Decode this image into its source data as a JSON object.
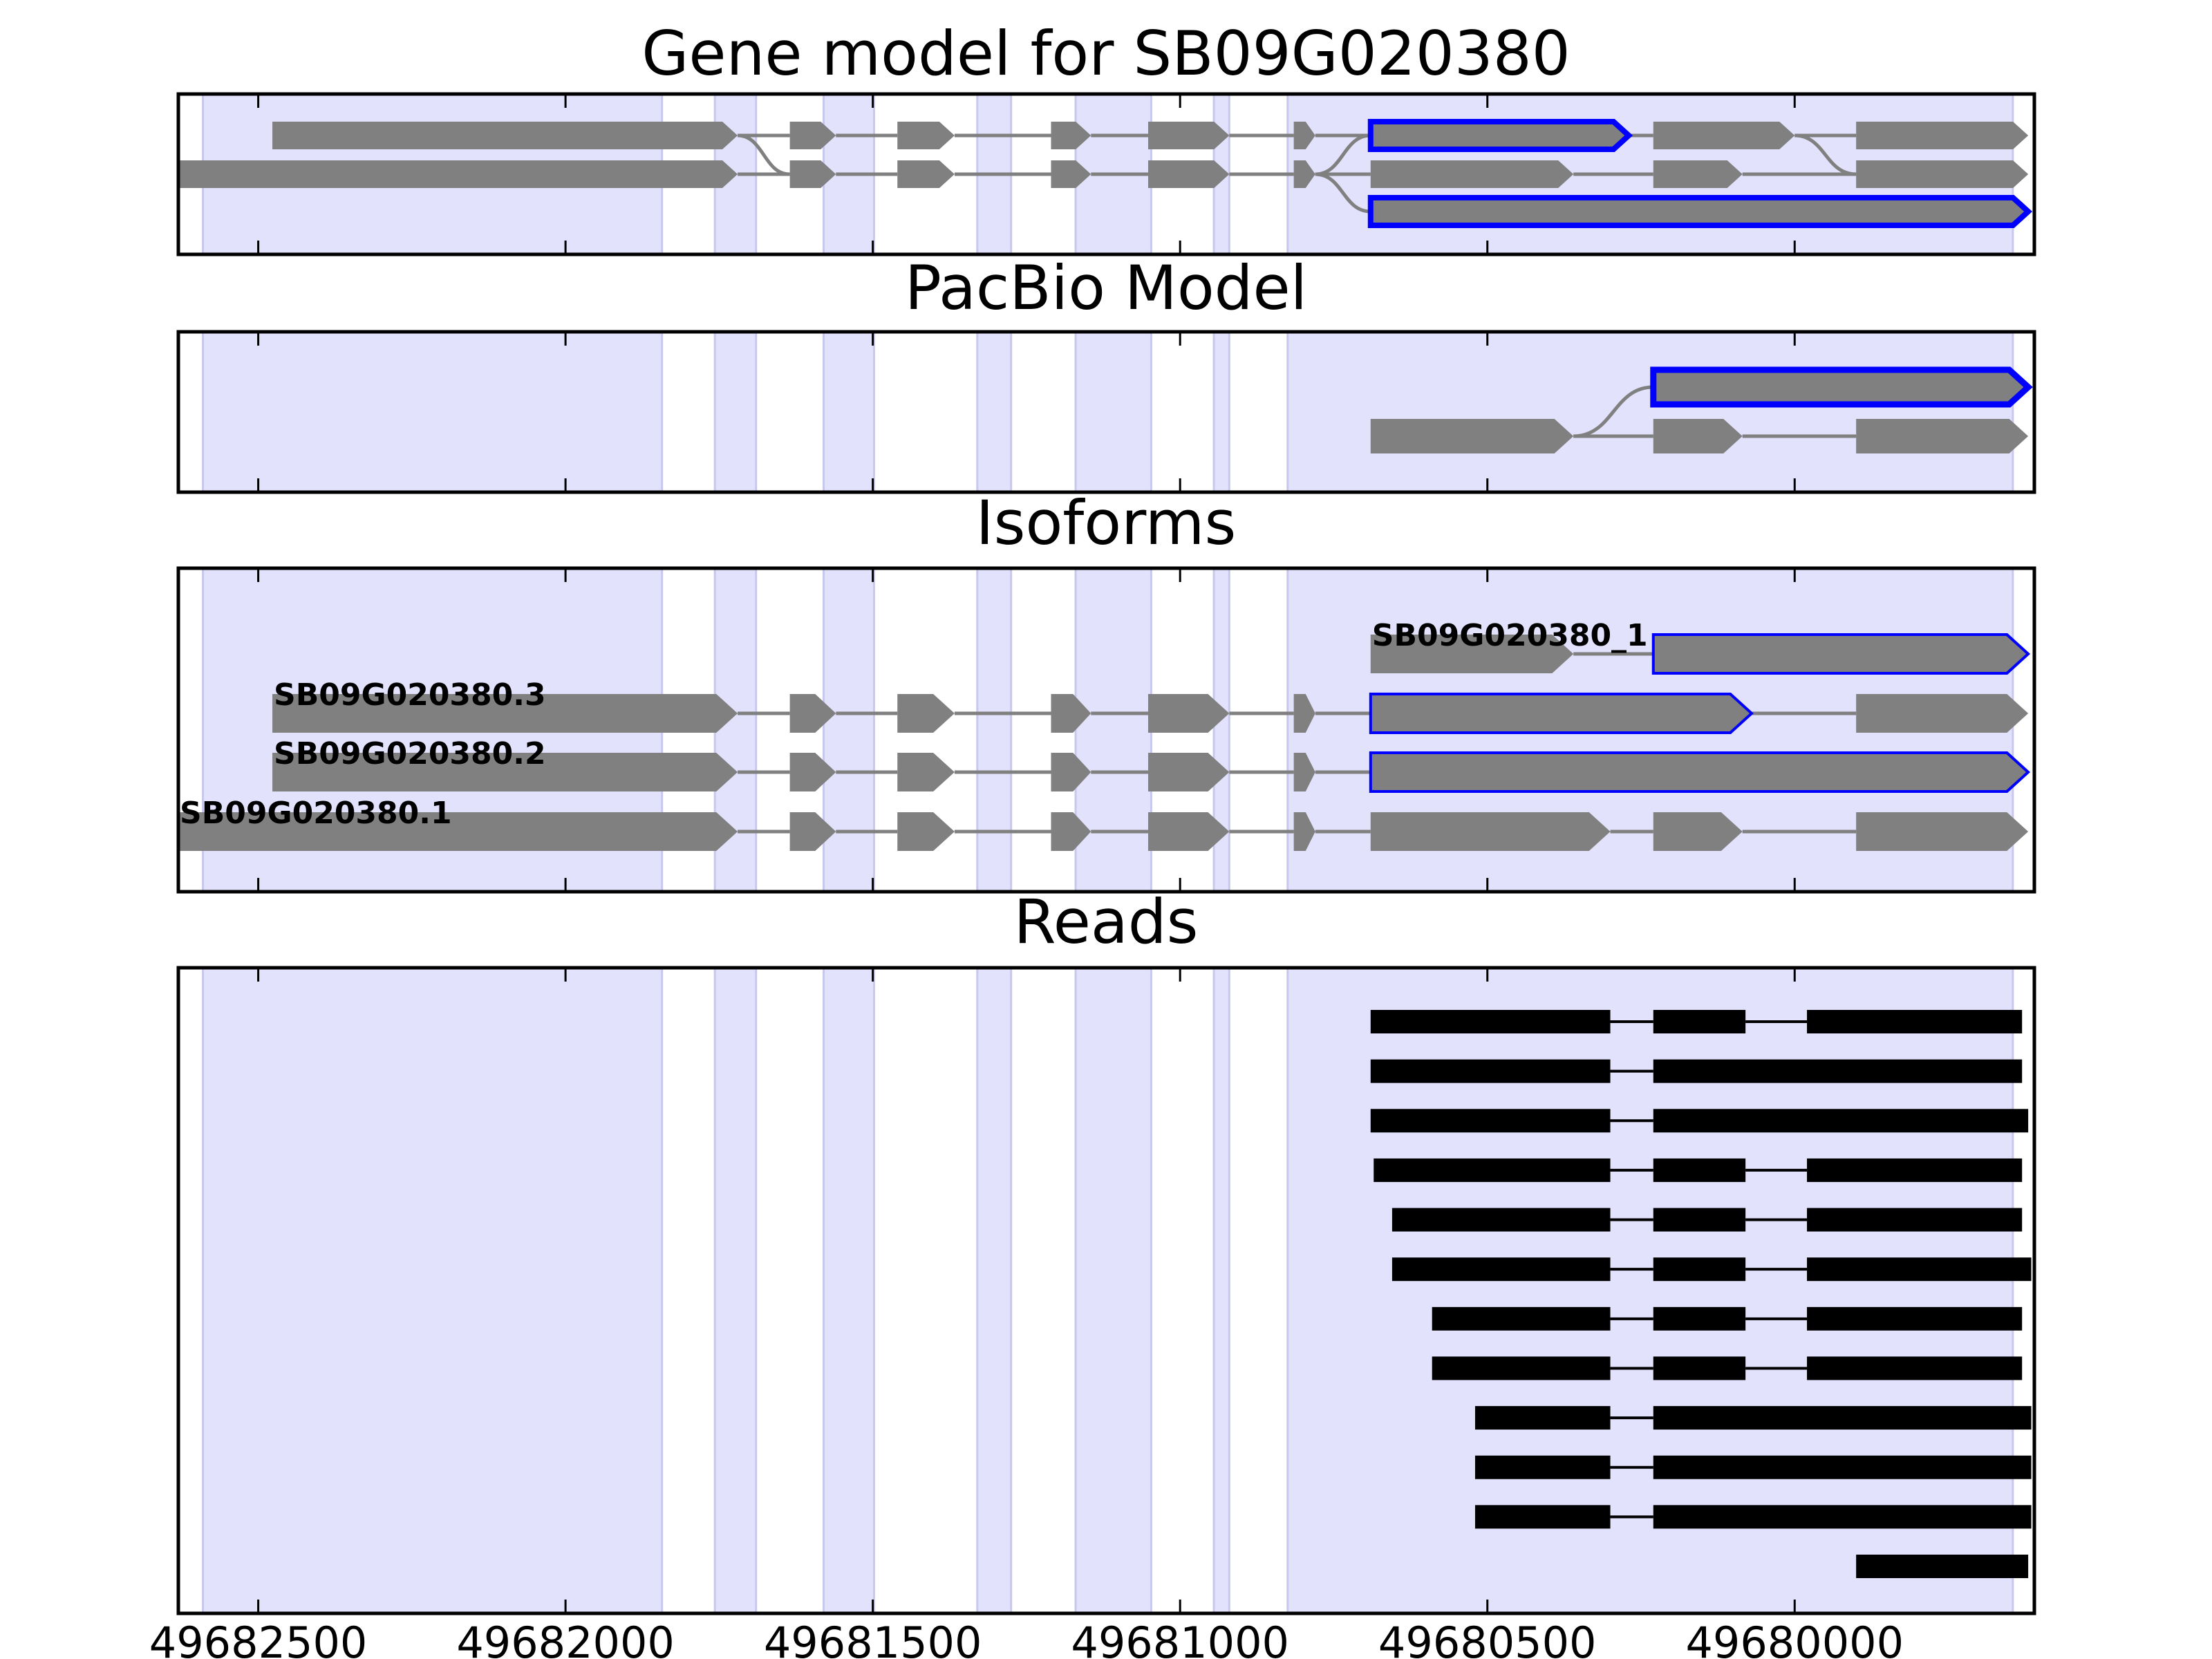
{
  "colors": {
    "highlight_band": "#e2e2fc",
    "band_edge": "#c8c8ef",
    "exon": "#808080",
    "selected_outline": "#0000ff",
    "read": "#000000",
    "intron_line": "#808080",
    "axis": "#000000"
  },
  "chart_data": [
    {
      "type": "gene-track",
      "title": "Gene model for SB09G020380",
      "xlim": [
        49682630,
        49679610
      ],
      "x_inverted": true,
      "rows": [
        {
          "exons": [
            [
              49682477,
              49681720
            ],
            [
              49681635,
              49681560
            ],
            [
              49681460,
              49681367
            ],
            [
              49681210,
              49681145
            ],
            [
              49681052,
              49680920
            ],
            [
              49680815,
              49680780
            ],
            [
              49680690,
              49680270
            ],
            [
              49680230,
              49680000
            ],
            [
              49679900,
              49679620
            ]
          ]
        },
        {
          "exons": [
            [
              49682630,
              49681720
            ],
            [
              49681635,
              49681560
            ],
            [
              49681460,
              49681367
            ],
            [
              49681210,
              49681145
            ],
            [
              49681052,
              49680920
            ],
            [
              49680815,
              49680780
            ],
            [
              49680690,
              49680360
            ],
            [
              49680230,
              49680085
            ],
            [
              49679900,
              49679620
            ]
          ]
        },
        {
          "exons": [
            [
              49680690,
              49679620
            ]
          ]
        }
      ],
      "connectors": [
        {
          "from_row": 0,
          "to_row": 1,
          "at": 49681720,
          "to": 49681635
        },
        {
          "from_row": 1,
          "to_row": 0,
          "at": 49680780,
          "to": 49680690
        },
        {
          "from_row": 1,
          "to_row": 2,
          "at": 49680780,
          "to": 49680690
        },
        {
          "from_row": 0,
          "to_row": 1,
          "at": 49680000,
          "to": 49679900
        }
      ],
      "highlighted": [
        [
          0,
          6
        ],
        [
          2,
          0
        ]
      ]
    },
    {
      "type": "gene-track",
      "title": "PacBio Model",
      "xlim": [
        49682630,
        49679610
      ],
      "x_inverted": true,
      "rows": [
        {
          "exons": [
            [
              49680230,
              49679620
            ]
          ]
        },
        {
          "exons": [
            [
              49680690,
              49680360
            ],
            [
              49680230,
              49680085
            ],
            [
              49679900,
              49679620
            ]
          ]
        }
      ],
      "connectors": [
        {
          "from_row": 1,
          "to_row": 0,
          "at": 49680360,
          "to": 49680230
        }
      ],
      "highlighted": [
        [
          0,
          0
        ]
      ]
    },
    {
      "type": "gene-track",
      "title": "Isoforms",
      "xlim": [
        49682630,
        49679610
      ],
      "x_inverted": true,
      "rows": [
        {
          "label": "SB09G020380_1",
          "exons": [
            [
              49680690,
              49680360
            ],
            [
              49680230,
              49679620
            ]
          ]
        },
        {
          "label": "SB09G020380.3",
          "exons": [
            [
              49682477,
              49681720
            ],
            [
              49681635,
              49681560
            ],
            [
              49681460,
              49681367
            ],
            [
              49681210,
              49681145
            ],
            [
              49681052,
              49680920
            ],
            [
              49680815,
              49680780
            ],
            [
              49680690,
              49680070
            ],
            [
              49679900,
              49679620
            ]
          ]
        },
        {
          "label": "SB09G020380.2",
          "exons": [
            [
              49682477,
              49681720
            ],
            [
              49681635,
              49681560
            ],
            [
              49681460,
              49681367
            ],
            [
              49681210,
              49681145
            ],
            [
              49681052,
              49680920
            ],
            [
              49680815,
              49680780
            ],
            [
              49680690,
              49679620
            ]
          ]
        },
        {
          "label": "SB09G020380.1",
          "exons": [
            [
              49682630,
              49681720
            ],
            [
              49681635,
              49681560
            ],
            [
              49681460,
              49681367
            ],
            [
              49681210,
              49681145
            ],
            [
              49681052,
              49680920
            ],
            [
              49680815,
              49680780
            ],
            [
              49680690,
              49680300
            ],
            [
              49680230,
              49680085
            ],
            [
              49679900,
              49679620
            ]
          ]
        }
      ],
      "highlighted": [
        [
          0,
          1
        ],
        [
          1,
          6
        ],
        [
          2,
          6
        ]
      ]
    },
    {
      "type": "read-track",
      "title": "Reads",
      "xlim": [
        49682630,
        49679610
      ],
      "x_inverted": true,
      "xticks": [
        49682500,
        49682000,
        49681500,
        49681000,
        49680500,
        49680000
      ],
      "xticklabels": [
        "49682500",
        "49682000",
        "49681500",
        "49681000",
        "49680500",
        "49680000"
      ],
      "reads": [
        [
          [
            49680690,
            49680300
          ],
          [
            49680230,
            49680080
          ],
          [
            49679980,
            49679630
          ]
        ],
        [
          [
            49680690,
            49680300
          ],
          [
            49680230,
            49679630
          ]
        ],
        [
          [
            49680690,
            49680300
          ],
          [
            49680230,
            49679620
          ]
        ],
        [
          [
            49680685,
            49680300
          ],
          [
            49680230,
            49680080
          ],
          [
            49679980,
            49679630
          ]
        ],
        [
          [
            49680655,
            49680300
          ],
          [
            49680230,
            49680080
          ],
          [
            49679980,
            49679630
          ]
        ],
        [
          [
            49680655,
            49680300
          ],
          [
            49680230,
            49680080
          ],
          [
            49679980,
            49679615
          ]
        ],
        [
          [
            49680590,
            49680300
          ],
          [
            49680230,
            49680080
          ],
          [
            49679980,
            49679630
          ]
        ],
        [
          [
            49680590,
            49680300
          ],
          [
            49680230,
            49680080
          ],
          [
            49679980,
            49679630
          ]
        ],
        [
          [
            49680520,
            49680300
          ],
          [
            49680230,
            49679615
          ]
        ],
        [
          [
            49680520,
            49680300
          ],
          [
            49680230,
            49679615
          ]
        ],
        [
          [
            49680520,
            49680300
          ],
          [
            49680230,
            49679615
          ]
        ],
        [
          [
            49679900,
            49679620
          ]
        ]
      ]
    }
  ],
  "shaded_bands": [
    [
      49682590,
      49681843
    ],
    [
      49681757,
      49681690
    ],
    [
      49681580,
      49681498
    ],
    [
      49681330,
      49681275
    ],
    [
      49681170,
      49681047
    ],
    [
      49680945,
      49680920
    ],
    [
      49680825,
      49679645
    ]
  ]
}
